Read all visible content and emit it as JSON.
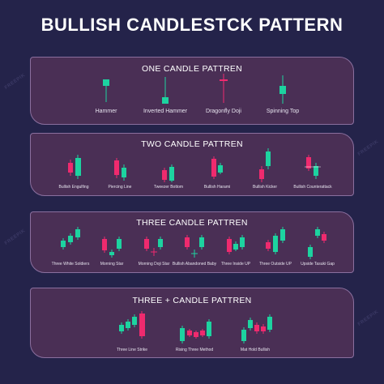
{
  "title": "BULLISH CANDLESTCK PATTERN",
  "watermark": "FREEPIK",
  "colors": {
    "bullish": "#1dd3a0",
    "bearish": "#ef2a6e",
    "panel": "#4a2f55",
    "background": "#24234a"
  },
  "panels": [
    {
      "title": "ONE CANDLE PATTREN",
      "patterns": [
        "Hammer",
        "Inverted Hammer",
        "Dragonfly Doji",
        "Spinning Top"
      ]
    },
    {
      "title": "TWO CANDLE PATTREN",
      "patterns": [
        "Bullish Engulfing",
        "Piercing Line",
        "Tweezer Bottom",
        "Bullish Harami",
        "Bullish Kicker",
        "Bullish Counterattack"
      ]
    },
    {
      "title": "THREE CANDLE PATTREN",
      "patterns": [
        "Three White Soldiers",
        "Morning Star",
        "Morning Doji Star",
        "Bullish Abandoned Baby",
        "Three Inside UP",
        "Three Outside UP",
        "Upside Tasuki Gap"
      ]
    },
    {
      "title": "THREE + CANDLE PATTREN",
      "patterns": [
        "Three Line Strike",
        "Rising Three Method",
        "Mat Hold Bullish"
      ]
    }
  ]
}
